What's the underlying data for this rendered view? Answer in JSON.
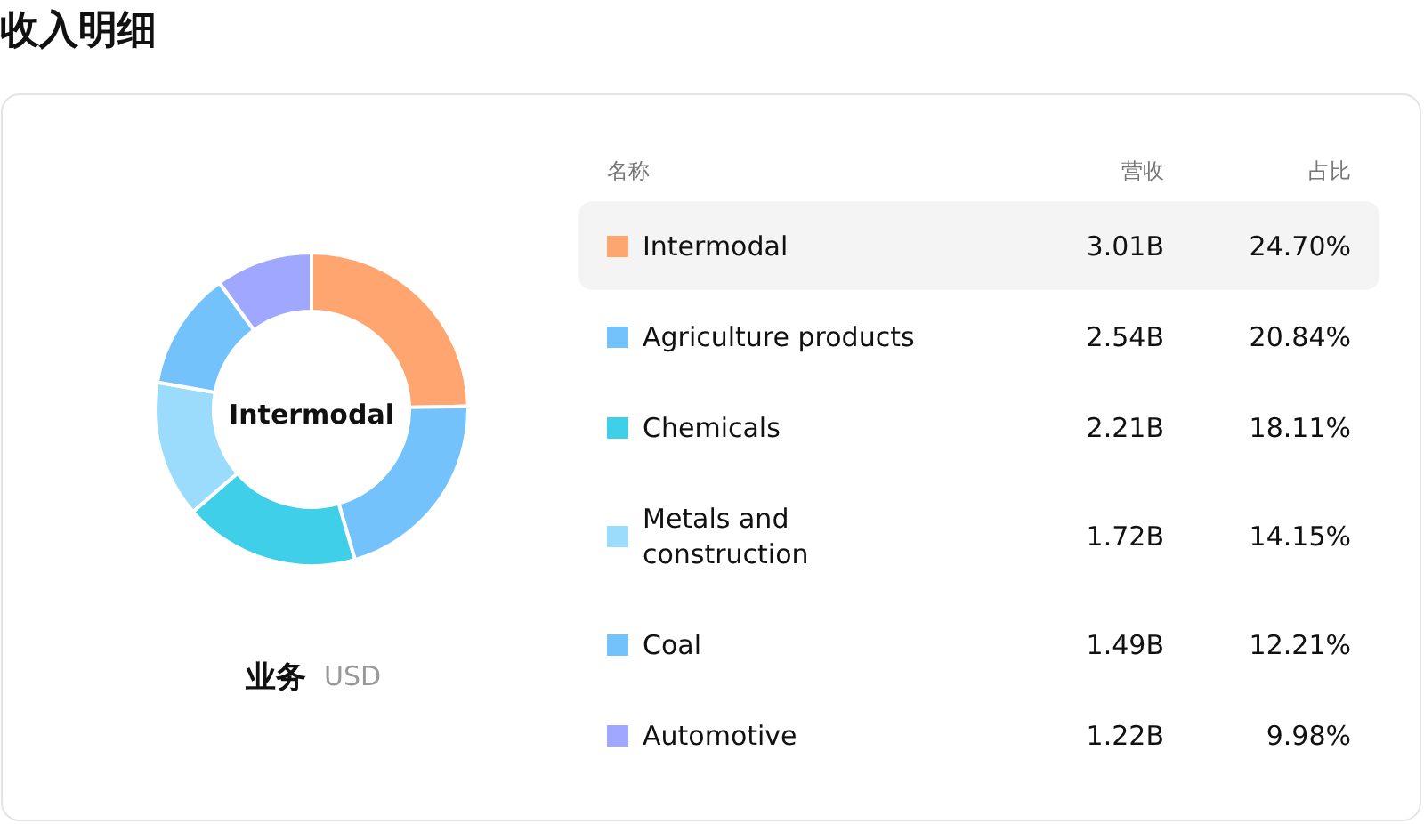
{
  "chart_data": {
    "type": "donut",
    "title": "收入明细",
    "categories": [
      "Intermodal",
      "Agriculture products",
      "Chemicals",
      "Metals and construction",
      "Coal",
      "Automotive"
    ],
    "values": [
      3.01,
      2.54,
      2.21,
      1.72,
      1.49,
      1.22
    ],
    "value_labels": [
      "3.01B",
      "2.54B",
      "2.21B",
      "1.72B",
      "1.49B",
      "1.22B"
    ],
    "colors": [
      "#ffa56f",
      "#73c2fb",
      "#40cfe8",
      "#9bdcfc",
      "#73c2fb",
      "#a0a7ff"
    ],
    "annotations": [
      {
        "text": "24.70%",
        "x": "Intermodal"
      },
      {
        "text": "20.84%",
        "x": "Agriculture products"
      },
      {
        "text": "18.11%",
        "x": "Chemicals"
      },
      {
        "text": "14.15%",
        "x": "Metals and construction"
      },
      {
        "text": "12.21%",
        "x": "Coal"
      },
      {
        "text": "9.98%",
        "x": "Automotive"
      },
      "业务",
      "USD",
      "名称",
      "营收",
      "占比"
    ],
    "legend": "right"
  }
}
